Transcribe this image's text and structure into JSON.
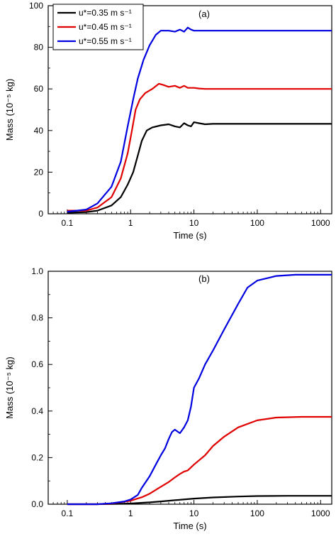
{
  "chart_data": [
    {
      "type": "line",
      "panel_label": "(a)",
      "xlabel": "Time (s)",
      "ylabel": "Mass (10⁻⁵ kg)",
      "x_scale": "log",
      "xlim": [
        0.05,
        1500
      ],
      "ylim": [
        0,
        100
      ],
      "x_ticks": [
        0.1,
        1,
        10,
        100,
        1000
      ],
      "x_tick_labels": [
        "0.1",
        "1",
        "10",
        "100",
        "1000"
      ],
      "y_ticks": [
        0,
        20,
        40,
        60,
        80,
        100
      ],
      "y_tick_labels": [
        "0",
        "20",
        "40",
        "60",
        "80",
        "100"
      ],
      "grid": false,
      "legend": "top-left",
      "series": [
        {
          "name": "u*=0.35 m s⁻¹",
          "color": "#000000",
          "points": [
            [
              0.1,
              0.5
            ],
            [
              0.2,
              0.8
            ],
            [
              0.3,
              1.5
            ],
            [
              0.5,
              4
            ],
            [
              0.7,
              8
            ],
            [
              0.9,
              14
            ],
            [
              1.1,
              20
            ],
            [
              1.3,
              28
            ],
            [
              1.5,
              35
            ],
            [
              1.8,
              40
            ],
            [
              2.2,
              41.5
            ],
            [
              3,
              42.5
            ],
            [
              4,
              43
            ],
            [
              5,
              42
            ],
            [
              6,
              41.5
            ],
            [
              7,
              43.5
            ],
            [
              8,
              42.5
            ],
            [
              9,
              42
            ],
            [
              10,
              44
            ],
            [
              12,
              43.5
            ],
            [
              15,
              43
            ],
            [
              20,
              43.2
            ],
            [
              50,
              43.2
            ],
            [
              100,
              43.2
            ],
            [
              1500,
              43.2
            ]
          ]
        },
        {
          "name": "u*=0.45 m s⁻¹",
          "color": "#e00000",
          "points": [
            [
              0.1,
              1.5
            ],
            [
              0.15,
              1.5
            ],
            [
              0.2,
              1.5
            ],
            [
              0.3,
              3
            ],
            [
              0.5,
              8
            ],
            [
              0.7,
              17
            ],
            [
              0.9,
              29
            ],
            [
              1.05,
              40
            ],
            [
              1.2,
              50
            ],
            [
              1.4,
              55
            ],
            [
              1.7,
              58
            ],
            [
              2.2,
              60
            ],
            [
              2.8,
              62.5
            ],
            [
              3.2,
              62
            ],
            [
              4,
              61
            ],
            [
              5,
              61.5
            ],
            [
              6,
              60.5
            ],
            [
              7,
              61.5
            ],
            [
              8,
              60.5
            ],
            [
              10,
              60.5
            ],
            [
              12,
              60.2
            ],
            [
              15,
              60
            ],
            [
              20,
              60
            ],
            [
              100,
              60
            ],
            [
              1500,
              60
            ]
          ]
        },
        {
          "name": "u*=0.55 m s⁻¹",
          "color": "#0000e0",
          "points": [
            [
              0.1,
              1
            ],
            [
              0.2,
              2
            ],
            [
              0.3,
              5
            ],
            [
              0.5,
              13
            ],
            [
              0.7,
              25
            ],
            [
              0.9,
              42
            ],
            [
              1.1,
              55
            ],
            [
              1.3,
              65
            ],
            [
              1.6,
              74
            ],
            [
              2,
              81
            ],
            [
              2.5,
              86
            ],
            [
              3,
              88
            ],
            [
              4,
              88
            ],
            [
              5,
              87.5
            ],
            [
              6,
              88.5
            ],
            [
              7,
              87.5
            ],
            [
              8,
              89.5
            ],
            [
              9,
              88.5
            ],
            [
              10,
              88
            ],
            [
              15,
              88
            ],
            [
              50,
              88
            ],
            [
              100,
              88
            ],
            [
              1500,
              88
            ]
          ]
        }
      ]
    },
    {
      "type": "line",
      "panel_label": "(b)",
      "xlabel": "Time (s)",
      "ylabel": "Mass (10⁻⁵ kg)",
      "x_scale": "log",
      "xlim": [
        0.05,
        1500
      ],
      "ylim": [
        0,
        1.0
      ],
      "x_ticks": [
        0.1,
        1,
        10,
        100,
        1000
      ],
      "x_tick_labels": [
        "0.1",
        "1",
        "10",
        "100",
        "1000"
      ],
      "y_ticks": [
        0,
        0.2,
        0.4,
        0.6,
        0.8,
        1.0
      ],
      "y_tick_labels": [
        "0.0",
        "0.2",
        "0.4",
        "0.6",
        "0.8",
        "1.0"
      ],
      "grid": false,
      "series": [
        {
          "name": "u*=0.35 m s⁻¹",
          "color": "#000000",
          "points": [
            [
              0.1,
              0
            ],
            [
              0.3,
              0
            ],
            [
              0.5,
              0.001
            ],
            [
              1,
              0.003
            ],
            [
              2,
              0.008
            ],
            [
              3,
              0.012
            ],
            [
              5,
              0.017
            ],
            [
              10,
              0.024
            ],
            [
              20,
              0.029
            ],
            [
              50,
              0.033
            ],
            [
              100,
              0.035
            ],
            [
              300,
              0.036
            ],
            [
              1500,
              0.036
            ]
          ]
        },
        {
          "name": "u*=0.45 m s⁻¹",
          "color": "#e00000",
          "points": [
            [
              0.1,
              0
            ],
            [
              0.3,
              0
            ],
            [
              0.5,
              0.003
            ],
            [
              1,
              0.015
            ],
            [
              1.5,
              0.03
            ],
            [
              2,
              0.045
            ],
            [
              3,
              0.075
            ],
            [
              4,
              0.095
            ],
            [
              5,
              0.115
            ],
            [
              6,
              0.13
            ],
            [
              7,
              0.14
            ],
            [
              8,
              0.145
            ],
            [
              10,
              0.17
            ],
            [
              15,
              0.21
            ],
            [
              20,
              0.25
            ],
            [
              30,
              0.29
            ],
            [
              50,
              0.33
            ],
            [
              100,
              0.36
            ],
            [
              200,
              0.372
            ],
            [
              500,
              0.375
            ],
            [
              1500,
              0.375
            ]
          ]
        },
        {
          "name": "u*=0.55 m s⁻¹",
          "color": "#0000e0",
          "points": [
            [
              0.1,
              0
            ],
            [
              0.3,
              0
            ],
            [
              0.5,
              0.004
            ],
            [
              0.8,
              0.012
            ],
            [
              1,
              0.02
            ],
            [
              1.3,
              0.04
            ],
            [
              1.5,
              0.07
            ],
            [
              2,
              0.12
            ],
            [
              2.5,
              0.17
            ],
            [
              3,
              0.21
            ],
            [
              3.5,
              0.24
            ],
            [
              4,
              0.28
            ],
            [
              4.5,
              0.31
            ],
            [
              5,
              0.32
            ],
            [
              6,
              0.305
            ],
            [
              7,
              0.33
            ],
            [
              8,
              0.36
            ],
            [
              9,
              0.42
            ],
            [
              10,
              0.5
            ],
            [
              12,
              0.54
            ],
            [
              15,
              0.6
            ],
            [
              20,
              0.66
            ],
            [
              30,
              0.75
            ],
            [
              50,
              0.86
            ],
            [
              70,
              0.93
            ],
            [
              100,
              0.96
            ],
            [
              200,
              0.98
            ],
            [
              400,
              0.985
            ],
            [
              1500,
              0.985
            ]
          ]
        }
      ]
    }
  ]
}
